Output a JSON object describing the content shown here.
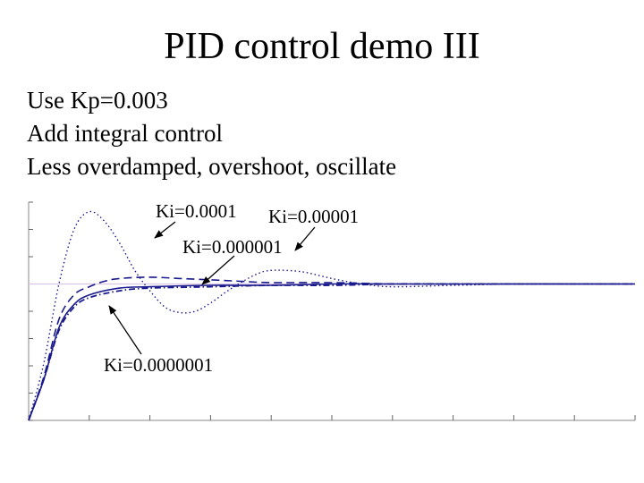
{
  "slide": {
    "title": "PID control demo III",
    "bullets": [
      "Use Kp=0.003",
      "Add integral control",
      "Less overdamped, overshoot, oscillate"
    ]
  },
  "chart_data": {
    "type": "line",
    "title": "",
    "xlabel": "",
    "ylabel": "",
    "xlim": [
      0,
      1000
    ],
    "ylim": [
      0,
      1.6
    ],
    "setpoint": 1.0,
    "grid": false,
    "colors": {
      "curves": "#1a1a8c",
      "setpoint": "#d9c6e6",
      "annotation": "#000000"
    },
    "annotations": [
      {
        "label": "Ki=0.0001",
        "series": "Ki=0.0001"
      },
      {
        "label": "Ki=0.00001",
        "series": "Ki=0.00001"
      },
      {
        "label": "Ki=0.000001",
        "series": "Ki=0.000001"
      },
      {
        "label": "Ki=0.0000001",
        "series": "Ki=0.0000001"
      }
    ],
    "series": [
      {
        "name": "Ki=0.0001",
        "style": "dotted",
        "x": [
          0,
          25,
          50,
          75,
          100,
          125,
          150,
          175,
          200,
          225,
          250,
          275,
          300,
          325,
          350,
          375,
          400,
          450,
          500,
          550,
          600,
          700,
          800,
          900,
          1000
        ],
        "y": [
          0,
          0.42,
          1.0,
          1.4,
          1.53,
          1.46,
          1.3,
          1.1,
          0.95,
          0.83,
          0.79,
          0.8,
          0.86,
          0.94,
          1.01,
          1.07,
          1.1,
          1.09,
          1.04,
          1.0,
          0.98,
          0.99,
          1.0,
          1.0,
          1.0
        ]
      },
      {
        "name": "Ki=0.00001",
        "style": "dashed",
        "x": [
          0,
          25,
          50,
          75,
          100,
          125,
          150,
          200,
          250,
          300,
          350,
          400,
          500,
          600,
          700,
          800,
          900,
          1000
        ],
        "y": [
          0,
          0.32,
          0.74,
          0.92,
          0.98,
          1.02,
          1.04,
          1.05,
          1.04,
          1.03,
          1.02,
          1.01,
          1.01,
          1.0,
          1.0,
          1.0,
          1.0,
          1.0
        ]
      },
      {
        "name": "Ki=0.000001",
        "style": "solid",
        "x": [
          0,
          25,
          50,
          75,
          100,
          150,
          200,
          300,
          400,
          500,
          600,
          700,
          800,
          900,
          1000
        ],
        "y": [
          0,
          0.3,
          0.68,
          0.85,
          0.92,
          0.97,
          0.98,
          0.99,
          0.99,
          1.0,
          1.0,
          1.0,
          1.0,
          1.0,
          1.0
        ]
      },
      {
        "name": "Ki=0.0000001",
        "style": "dashdot",
        "x": [
          0,
          25,
          50,
          75,
          100,
          150,
          200,
          300,
          400,
          500,
          600,
          700,
          800,
          900,
          1000
        ],
        "y": [
          0,
          0.3,
          0.66,
          0.83,
          0.9,
          0.95,
          0.97,
          0.98,
          0.99,
          0.99,
          1.0,
          1.0,
          1.0,
          1.0,
          1.0
        ]
      }
    ]
  }
}
